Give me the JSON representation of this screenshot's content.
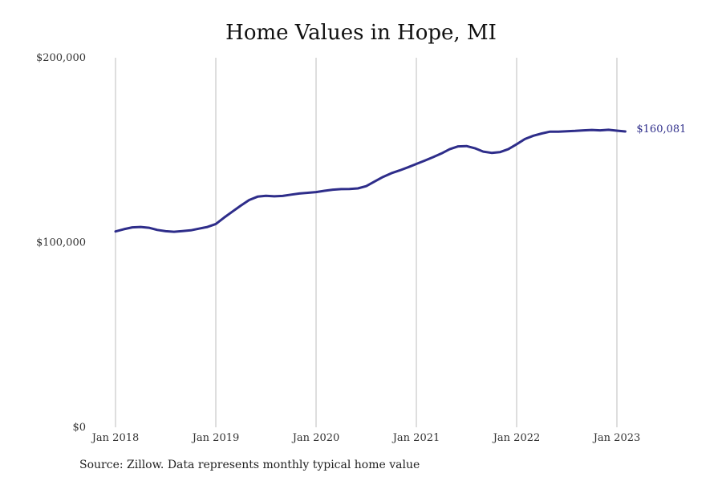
{
  "chart_data": {
    "type": "line",
    "title": "Home Values in Hope, MI",
    "xlabel": "",
    "ylabel": "",
    "ylim": [
      0,
      200000
    ],
    "y_ticks": [
      {
        "value": 0,
        "label": "$0"
      },
      {
        "value": 100000,
        "label": "$100,000"
      },
      {
        "value": 200000,
        "label": "$200,000"
      }
    ],
    "x_ticks": [
      {
        "value": 2018.0,
        "label": "Jan 2018"
      },
      {
        "value": 2019.0,
        "label": "Jan 2019"
      },
      {
        "value": 2020.0,
        "label": "Jan 2020"
      },
      {
        "value": 2021.0,
        "label": "Jan 2021"
      },
      {
        "value": 2022.0,
        "label": "Jan 2022"
      },
      {
        "value": 2023.0,
        "label": "Jan 2023"
      }
    ],
    "grid": "vertical",
    "series": [
      {
        "color": "#2e2d8a",
        "end_label": "$160,081",
        "x": [
          2018.0,
          2018.083,
          2018.167,
          2018.25,
          2018.333,
          2018.417,
          2018.5,
          2018.583,
          2018.667,
          2018.75,
          2018.833,
          2018.917,
          2019.0,
          2019.083,
          2019.167,
          2019.25,
          2019.333,
          2019.417,
          2019.5,
          2019.583,
          2019.667,
          2019.75,
          2019.833,
          2019.917,
          2020.0,
          2020.083,
          2020.167,
          2020.25,
          2020.333,
          2020.417,
          2020.5,
          2020.583,
          2020.667,
          2020.75,
          2020.833,
          2020.917,
          2021.0,
          2021.083,
          2021.167,
          2021.25,
          2021.333,
          2021.417,
          2021.5,
          2021.583,
          2021.667,
          2021.75,
          2021.833,
          2021.917,
          2022.0,
          2022.083,
          2022.167,
          2022.25,
          2022.333,
          2022.417,
          2022.5,
          2022.583,
          2022.667,
          2022.75,
          2022.833,
          2022.917,
          2023.0,
          2023.083
        ],
        "values": [
          106000,
          107200,
          108200,
          108400,
          108000,
          106800,
          106100,
          105800,
          106200,
          106600,
          107500,
          108400,
          110000,
          113500,
          116800,
          120000,
          123000,
          124800,
          125300,
          125000,
          125200,
          125900,
          126500,
          126900,
          127300,
          128000,
          128600,
          128900,
          129000,
          129300,
          130500,
          133000,
          135500,
          137500,
          139000,
          140700,
          142500,
          144300,
          146200,
          148200,
          150500,
          152000,
          152200,
          151000,
          149200,
          148500,
          148900,
          150500,
          153200,
          156000,
          157800,
          159000,
          160000,
          160000,
          160200,
          160400,
          160700,
          160900,
          160700,
          161000,
          160500,
          160081
        ]
      }
    ]
  },
  "footer": {
    "source": "Source: Zillow. Data represents monthly typical home value"
  }
}
